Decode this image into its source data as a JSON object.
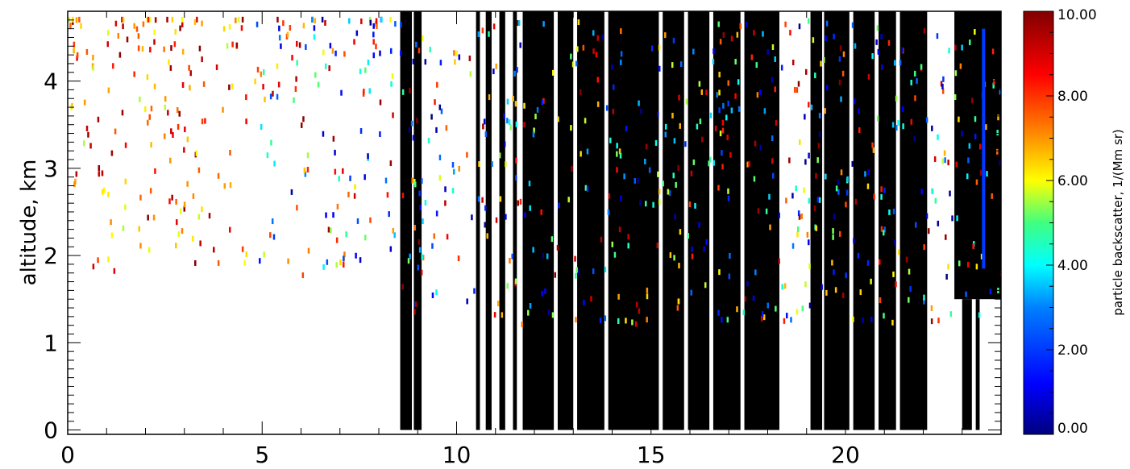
{
  "chart_data": {
    "type": "heatmap",
    "title": "",
    "xlabel": "",
    "ylabel": "altitude, km",
    "xlim": [
      0,
      24
    ],
    "ylim": [
      -0.05,
      4.8
    ],
    "x_ticks": [
      "0",
      "5",
      "10",
      "15",
      "20"
    ],
    "x_tick_values": [
      0,
      5,
      10,
      15,
      20
    ],
    "y_ticks": [
      "0",
      "1",
      "2",
      "3",
      "4"
    ],
    "y_tick_values": [
      0,
      1,
      2,
      3,
      4
    ],
    "colorbar": {
      "label": "particle backscatter, 1/(Mm sr)",
      "range": [
        0,
        10
      ],
      "ticks": [
        "0.00",
        "2.00",
        "4.00",
        "6.00",
        "8.00",
        "10.00"
      ],
      "tick_values": [
        0,
        2,
        4,
        6,
        8,
        10
      ],
      "colormap": "rainbow"
    },
    "mask_color": "#000000",
    "masked_regions": [
      {
        "x": [
          8.55,
          8.85
        ],
        "y": [
          0,
          4.8
        ]
      },
      {
        "x": [
          8.9,
          9.1
        ],
        "y": [
          0,
          4.8
        ]
      },
      {
        "x": [
          10.5,
          10.6
        ],
        "y": [
          0,
          4.8
        ]
      },
      {
        "x": [
          10.75,
          10.9
        ],
        "y": [
          0,
          4.8
        ]
      },
      {
        "x": [
          11.1,
          11.25
        ],
        "y": [
          0,
          4.8
        ]
      },
      {
        "x": [
          11.45,
          11.55
        ],
        "y": [
          0,
          4.8
        ]
      },
      {
        "x": [
          11.7,
          12.5
        ],
        "y": [
          0,
          4.8
        ]
      },
      {
        "x": [
          12.6,
          13.0
        ],
        "y": [
          0,
          4.8
        ]
      },
      {
        "x": [
          13.1,
          13.8
        ],
        "y": [
          0,
          4.8
        ]
      },
      {
        "x": [
          13.9,
          15.2
        ],
        "y": [
          0,
          4.8
        ]
      },
      {
        "x": [
          15.3,
          15.85
        ],
        "y": [
          0,
          4.8
        ]
      },
      {
        "x": [
          15.95,
          16.5
        ],
        "y": [
          0,
          4.8
        ]
      },
      {
        "x": [
          16.6,
          17.3
        ],
        "y": [
          0,
          4.8
        ]
      },
      {
        "x": [
          17.4,
          18.3
        ],
        "y": [
          0,
          4.8
        ]
      },
      {
        "x": [
          19.1,
          19.4
        ],
        "y": [
          0,
          4.8
        ]
      },
      {
        "x": [
          19.45,
          20.1
        ],
        "y": [
          0,
          4.8
        ]
      },
      {
        "x": [
          20.2,
          20.75
        ],
        "y": [
          0,
          4.8
        ]
      },
      {
        "x": [
          20.85,
          21.3
        ],
        "y": [
          0,
          4.8
        ]
      },
      {
        "x": [
          21.4,
          22.1
        ],
        "y": [
          0,
          4.8
        ]
      },
      {
        "x": [
          22.8,
          24.0
        ],
        "y": [
          1.5,
          4.8
        ]
      },
      {
        "x": [
          23.0,
          23.25
        ],
        "y": [
          0,
          1.5
        ]
      },
      {
        "x": [
          23.35,
          23.45
        ],
        "y": [
          0,
          1.5
        ]
      }
    ],
    "notable_features": [
      {
        "description": "vertical blue column",
        "x": 23.55,
        "y": [
          1.85,
          4.6
        ],
        "value": 2.0
      }
    ]
  }
}
